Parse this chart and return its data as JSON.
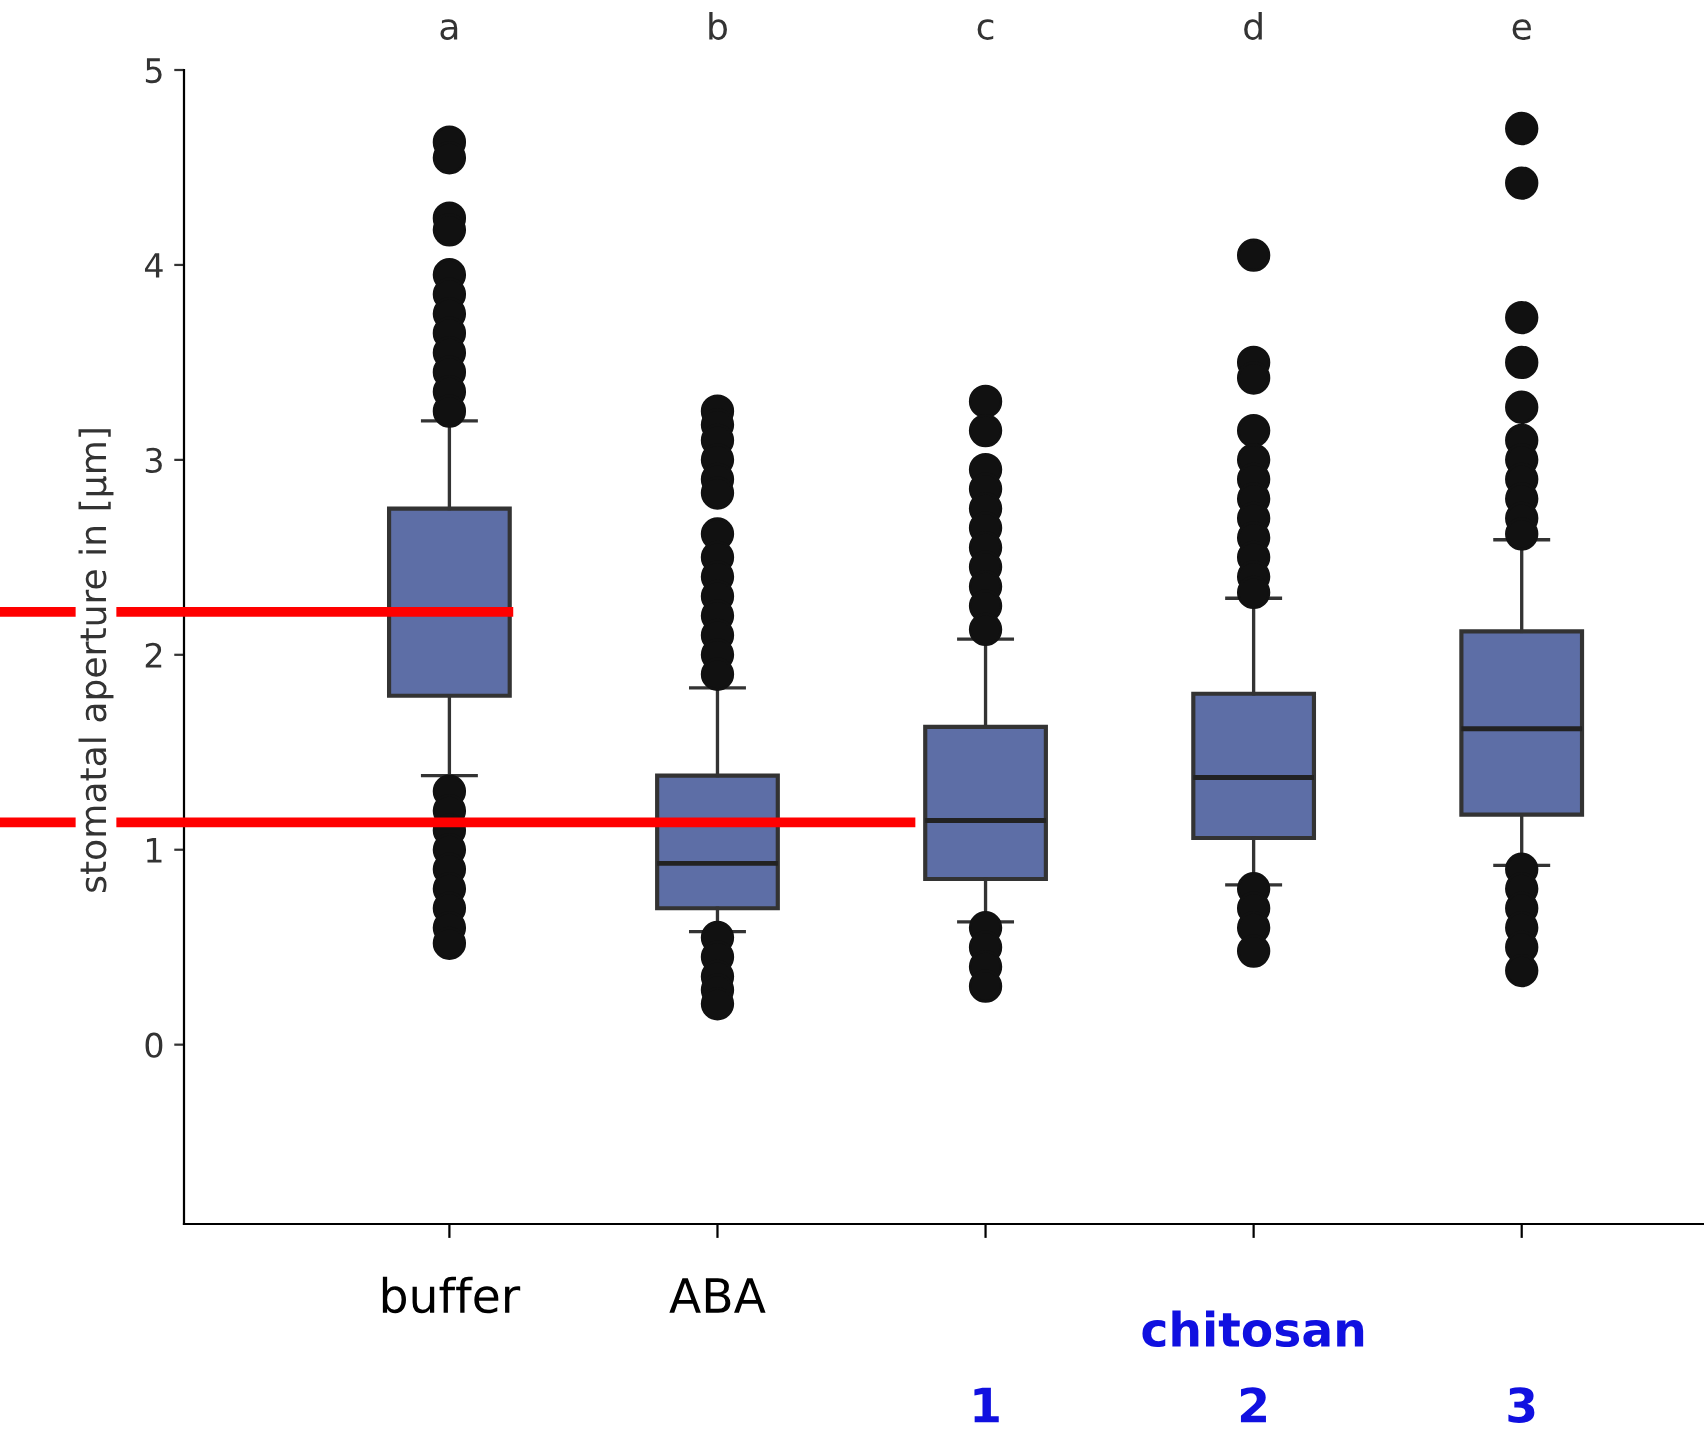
{
  "chart_data": {
    "type": "box",
    "ylabel": "stomatal aperture in [µm]",
    "xlabel": "chitosan",
    "categories": [
      "buffer",
      "ABA",
      "1",
      "2",
      "3"
    ],
    "color": "#5d6ea6",
    "boxes": [
      {
        "low": 1.38,
        "q1": 1.79,
        "median": 2.22,
        "q3": 2.75,
        "high": 3.2,
        "outliers": [
          4.63,
          4.55,
          4.24,
          4.18,
          3.95,
          3.85,
          3.75,
          3.65,
          3.55,
          3.45,
          3.35,
          3.25,
          1.3,
          1.2,
          1.1,
          1.0,
          0.9,
          0.8,
          0.7,
          0.6,
          0.52
        ]
      },
      {
        "low": 0.58,
        "q1": 0.7,
        "median": 0.93,
        "q3": 1.38,
        "high": 1.83,
        "outliers": [
          3.25,
          3.18,
          3.1,
          3.0,
          2.9,
          2.83,
          2.62,
          2.5,
          2.4,
          2.3,
          2.2,
          2.1,
          2.0,
          1.9,
          0.55,
          0.45,
          0.35,
          0.28,
          0.21
        ]
      },
      {
        "low": 0.63,
        "q1": 0.85,
        "median": 1.15,
        "q3": 1.63,
        "high": 2.08,
        "outliers": [
          3.3,
          3.15,
          2.95,
          2.85,
          2.75,
          2.65,
          2.55,
          2.45,
          2.35,
          2.25,
          2.13,
          0.6,
          0.5,
          0.4,
          0.3
        ]
      },
      {
        "low": 0.82,
        "q1": 1.06,
        "median": 1.37,
        "q3": 1.8,
        "high": 2.29,
        "outliers": [
          4.05,
          3.5,
          3.42,
          3.15,
          3.0,
          2.9,
          2.8,
          2.7,
          2.6,
          2.5,
          2.4,
          2.32,
          0.8,
          0.7,
          0.6,
          0.48
        ]
      },
      {
        "low": 0.92,
        "q1": 1.18,
        "median": 1.62,
        "q3": 2.12,
        "high": 2.59,
        "outliers": [
          4.7,
          4.42,
          3.73,
          3.5,
          3.27,
          3.1,
          3.0,
          2.9,
          2.8,
          2.7,
          2.62,
          0.9,
          0.8,
          0.7,
          0.6,
          0.5,
          0.38
        ]
      }
    ],
    "annotations": [
      "a",
      "b",
      "c",
      "d",
      "e"
    ],
    "ref_lines": [
      {
        "axis": "y",
        "value": 2.22,
        "color": "#ff0000"
      },
      {
        "axis": "y",
        "value": 1.14,
        "color": "#ff0000"
      }
    ],
    "ylim": [
      -0.92,
      5
    ],
    "yticks": [
      0,
      1,
      2,
      3,
      4,
      5
    ],
    "grid": false,
    "legend": false
  }
}
